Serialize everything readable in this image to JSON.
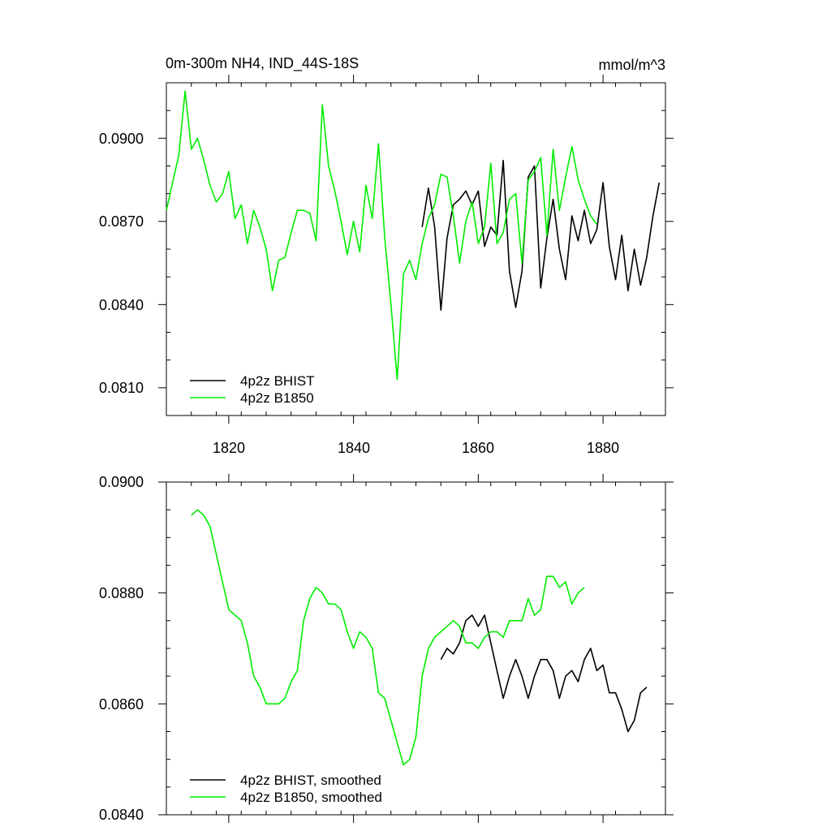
{
  "chart_data": [
    {
      "type": "line",
      "title": "0m-300m NH4, IND_44S-18S",
      "units": "mmol/m^3",
      "xlim": [
        1810,
        1890
      ],
      "ylim": [
        0.08,
        0.092
      ],
      "x_ticks": [
        "1820",
        "1840",
        "1860",
        "1880"
      ],
      "y_ticks": [
        "0.0810",
        "0.0840",
        "0.0870",
        "0.0900"
      ],
      "legend_position": "bottom-left",
      "series": [
        {
          "name": "4p2z BHIST",
          "color": "#000000",
          "x": [
            1851,
            1852,
            1853,
            1854,
            1855,
            1856,
            1857,
            1858,
            1859,
            1860,
            1861,
            1862,
            1863,
            1864,
            1865,
            1866,
            1867,
            1868,
            1869,
            1870,
            1871,
            1872,
            1873,
            1874,
            1875,
            1876,
            1877,
            1878,
            1879,
            1880,
            1881,
            1882,
            1883,
            1884,
            1885,
            1886,
            1887,
            1888,
            1889
          ],
          "y": [
            0.0868,
            0.0882,
            0.0868,
            0.0838,
            0.0864,
            0.0876,
            0.0878,
            0.0881,
            0.0876,
            0.0881,
            0.0861,
            0.0868,
            0.0865,
            0.0892,
            0.0852,
            0.0839,
            0.0852,
            0.0886,
            0.089,
            0.0846,
            0.0864,
            0.0878,
            0.086,
            0.0849,
            0.0872,
            0.0863,
            0.0874,
            0.0862,
            0.0867,
            0.0884,
            0.0861,
            0.0849,
            0.0865,
            0.0845,
            0.086,
            0.0847,
            0.0857,
            0.0872,
            0.0884
          ]
        },
        {
          "name": "4p2z B1850",
          "color": "#00ee00",
          "x": [
            1810,
            1811,
            1812,
            1813,
            1814,
            1815,
            1816,
            1817,
            1818,
            1819,
            1820,
            1821,
            1822,
            1823,
            1824,
            1825,
            1826,
            1827,
            1828,
            1829,
            1830,
            1831,
            1832,
            1833,
            1834,
            1835,
            1836,
            1837,
            1838,
            1839,
            1840,
            1841,
            1842,
            1843,
            1844,
            1845,
            1846,
            1847,
            1848,
            1849,
            1850,
            1851,
            1852,
            1853,
            1854,
            1855,
            1856,
            1857,
            1858,
            1859,
            1860,
            1861,
            1862,
            1863,
            1864,
            1865,
            1866,
            1867,
            1868,
            1869,
            1870,
            1871,
            1872,
            1873,
            1874,
            1875,
            1876,
            1877,
            1878,
            1879
          ],
          "y": [
            0.0874,
            0.0884,
            0.0894,
            0.0917,
            0.0896,
            0.09,
            0.0892,
            0.0883,
            0.0877,
            0.088,
            0.0888,
            0.0871,
            0.0876,
            0.0862,
            0.0874,
            0.0868,
            0.086,
            0.0845,
            0.0856,
            0.0857,
            0.0866,
            0.0874,
            0.0874,
            0.0873,
            0.0863,
            0.0912,
            0.089,
            0.0881,
            0.087,
            0.0858,
            0.087,
            0.0859,
            0.0883,
            0.0871,
            0.0898,
            0.0864,
            0.084,
            0.0813,
            0.0851,
            0.0856,
            0.0849,
            0.0862,
            0.0871,
            0.0876,
            0.0887,
            0.0886,
            0.0872,
            0.0855,
            0.087,
            0.0877,
            0.0862,
            0.0868,
            0.0891,
            0.0862,
            0.0866,
            0.0878,
            0.088,
            0.0855,
            0.0885,
            0.0888,
            0.0893,
            0.0865,
            0.0896,
            0.0874,
            0.0886,
            0.0897,
            0.0885,
            0.0878,
            0.0872,
            0.0869
          ]
        }
      ]
    },
    {
      "type": "line",
      "title": "",
      "units": "",
      "xlim": [
        1810,
        1890
      ],
      "ylim": [
        0.084,
        0.09
      ],
      "x_ticks": [
        "",
        "",
        "",
        ""
      ],
      "y_ticks": [
        "0.0840",
        "0.0860",
        "0.0880",
        "0.0900"
      ],
      "legend_position": "bottom-left",
      "series": [
        {
          "name": "4p2z BHIST, smoothed",
          "color": "#000000",
          "x": [
            1854,
            1855,
            1856,
            1857,
            1858,
            1859,
            1860,
            1861,
            1862,
            1863,
            1864,
            1865,
            1866,
            1867,
            1868,
            1869,
            1870,
            1871,
            1872,
            1873,
            1874,
            1875,
            1876,
            1877,
            1878,
            1879,
            1880,
            1881,
            1882,
            1883,
            1884,
            1885,
            1886,
            1887
          ],
          "y": [
            0.0868,
            0.087,
            0.0869,
            0.0871,
            0.0875,
            0.0876,
            0.0874,
            0.0876,
            0.0871,
            0.0866,
            0.0861,
            0.0865,
            0.0868,
            0.0865,
            0.0861,
            0.0865,
            0.0868,
            0.0868,
            0.0866,
            0.0861,
            0.0865,
            0.0866,
            0.0864,
            0.0868,
            0.087,
            0.0866,
            0.0867,
            0.0862,
            0.0862,
            0.0859,
            0.0855,
            0.0857,
            0.0862,
            0.0863
          ]
        },
        {
          "name": "4p2z B1850, smoothed",
          "color": "#00ee00",
          "x": [
            1814,
            1815,
            1816,
            1817,
            1818,
            1819,
            1820,
            1821,
            1822,
            1823,
            1824,
            1825,
            1826,
            1827,
            1828,
            1829,
            1830,
            1831,
            1832,
            1833,
            1834,
            1835,
            1836,
            1837,
            1838,
            1839,
            1840,
            1841,
            1842,
            1843,
            1844,
            1845,
            1846,
            1847,
            1848,
            1849,
            1850,
            1851,
            1852,
            1853,
            1854,
            1855,
            1856,
            1857,
            1858,
            1859,
            1860,
            1861,
            1862,
            1863,
            1864,
            1865,
            1866,
            1867,
            1868,
            1869,
            1870,
            1871,
            1872,
            1873,
            1874,
            1875,
            1876,
            1877
          ],
          "y": [
            0.0894,
            0.0895,
            0.0894,
            0.0892,
            0.0887,
            0.0882,
            0.0877,
            0.0876,
            0.0875,
            0.0871,
            0.0865,
            0.0863,
            0.086,
            0.086,
            0.086,
            0.0861,
            0.0864,
            0.0866,
            0.0875,
            0.0879,
            0.0881,
            0.088,
            0.0878,
            0.0878,
            0.0877,
            0.0873,
            0.087,
            0.0873,
            0.0872,
            0.087,
            0.0862,
            0.0861,
            0.0857,
            0.0853,
            0.0849,
            0.085,
            0.0854,
            0.0865,
            0.087,
            0.0872,
            0.0873,
            0.0874,
            0.0875,
            0.0874,
            0.0871,
            0.0871,
            0.087,
            0.0872,
            0.0873,
            0.0873,
            0.0872,
            0.0875,
            0.0875,
            0.0875,
            0.0879,
            0.0876,
            0.0877,
            0.0883,
            0.0883,
            0.0881,
            0.0882,
            0.0878,
            0.088,
            0.0881
          ]
        }
      ]
    }
  ]
}
